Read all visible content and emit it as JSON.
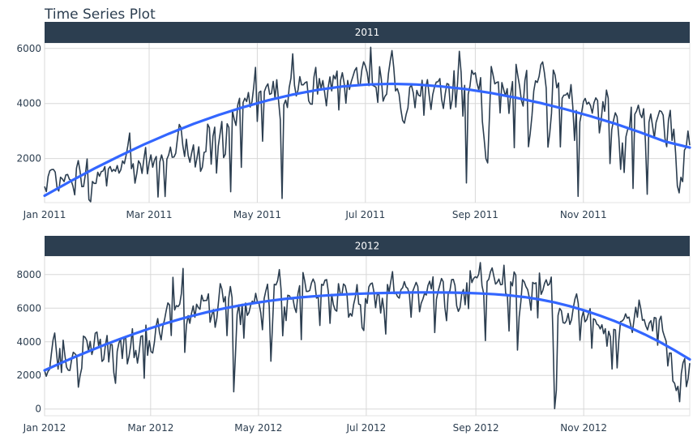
{
  "chart_data": {
    "type": "line",
    "title": "Time Series Plot",
    "colors": {
      "series": "#2c3e50",
      "trend": "#3366ff",
      "strip": "#2c3e50",
      "grid": "#d8d8d8"
    },
    "panels": [
      {
        "label": "2011",
        "x_ticks": [
          {
            "date": "2011-01-01",
            "label": "Jan 2011"
          },
          {
            "date": "2011-03-01",
            "label": "Mar 2011"
          },
          {
            "date": "2011-05-01",
            "label": "May 2011"
          },
          {
            "date": "2011-07-01",
            "label": "Jul 2011"
          },
          {
            "date": "2011-09-01",
            "label": "Sep 2011"
          },
          {
            "date": "2011-11-01",
            "label": "Nov 2011"
          }
        ],
        "y_ticks": [
          2000,
          4000,
          6000
        ],
        "xlim": [
          "2011-01-01",
          "2011-12-31"
        ],
        "ylim": [
          400,
          6200
        ],
        "series_values": [
          985,
          801,
          1349,
          1562,
          1600,
          1606,
          1510,
          959,
          822,
          1321,
          1263,
          1162,
          1406,
          1421,
          1248,
          1204,
          1000,
          683,
          1650,
          1927,
          1543,
          981,
          986,
          1416,
          1985,
          506,
          431,
          1167,
          1098,
          1096,
          1501,
          1360,
          1526,
          1550,
          1708,
          1005,
          1623,
          1712,
          1530,
          1605,
          1538,
          1746,
          1472,
          1589,
          1913,
          1815,
          2115,
          2475,
          2927,
          1635,
          1812,
          1107,
          1450,
          1917,
          1807,
          1461,
          1969,
          2402,
          1446,
          1851,
          2134,
          1685,
          1944,
          2077,
          605,
          1872,
          2133,
          1891,
          623,
          1977,
          2132,
          2417,
          2046,
          2056,
          2192,
          2744,
          3239,
          3117,
          2471,
          2077,
          2703,
          2121,
          1865,
          2210,
          2496,
          1693,
          2028,
          2425,
          1536,
          1685,
          2227,
          2252,
          3249,
          3115,
          1795,
          2808,
          3141,
          1471,
          2455,
          2895,
          3348,
          2034,
          2162,
          3267,
          3126,
          795,
          3744,
          3429,
          3204,
          3944,
          4189,
          1683,
          4036,
          4191,
          4073,
          4400,
          3872,
          4058,
          4595,
          5312,
          3351,
          4401,
          4451,
          2633,
          4433,
          4608,
          4714,
          4333,
          4362,
          4803,
          4182,
          4864,
          4105,
          3409,
          553,
          3958,
          4123,
          3855,
          4575,
          4917,
          5805,
          4660,
          4274,
          4492,
          4978,
          4677,
          4679,
          4758,
          4788,
          4098,
          3982,
          3974,
          4968,
          5312,
          4342,
          4906,
          4548,
          4833,
          4401,
          3915,
          4586,
          4966,
          4460,
          5020,
          4891,
          5180,
          3767,
          4844,
          5119,
          4744,
          4010,
          4835,
          4507,
          4790,
          4991,
          5202,
          5305,
          4708,
          4648,
          5225,
          5515,
          5362,
          5119,
          4649,
          6043,
          4665,
          4629,
          4592,
          4040,
          5336,
          4881,
          4086,
          4258,
          4342,
          5084,
          5538,
          5923,
          5302,
          4458,
          4541,
          4332,
          3784,
          3387,
          3285,
          3606,
          3840,
          4590,
          4656,
          4390,
          3846,
          4475,
          4302,
          4266,
          4845,
          3574,
          4576,
          4866,
          4294,
          3785,
          4326,
          4602,
          4780,
          4792,
          4905,
          4150,
          3820,
          4338,
          4725,
          4694,
          3805,
          4153,
          5191,
          3873,
          4758,
          5895,
          5130,
          3542,
          4661,
          1115,
          4334,
          4634,
          5204,
          5058,
          5115,
          4727,
          4484,
          4940,
          3351,
          2710,
          1996,
          1842,
          3544,
          5345,
          5046,
          4713,
          4763,
          4785,
          3659,
          4760,
          4511,
          4274,
          4539,
          3641,
          4352,
          4795,
          2395,
          5423,
          5010,
          4630,
          4120,
          3907,
          4839,
          5202,
          2429,
          2918,
          3570,
          4456,
          4826,
          4765,
          4985,
          5409,
          5511,
          5117,
          4563,
          2416,
          2913,
          3644,
          5217,
          5041,
          4570,
          4748,
          2424,
          4195,
          4304,
          4308,
          4381,
          4187,
          4687,
          3894,
          2659,
          3747,
          627,
          3331,
          3669,
          4068,
          4186,
          3974,
          4046,
          3926,
          3649,
          4035,
          4205,
          4109,
          2933,
          3368,
          4067,
          3717,
          4486,
          4195,
          1817,
          3053,
          3392,
          3663,
          3520,
          2765,
          1607,
          2566,
          1495,
          2792,
          3068,
          3071,
          3867,
          914,
          3613,
          3727,
          3940,
          3614,
          3485,
          3811,
          2594,
          705,
          3322,
          3620,
          3190,
          2743,
          3310,
          3523,
          3740,
          3709,
          3577,
          2739,
          2431,
          3403,
          3750,
          2660,
          3068,
          2209,
          1011,
          754,
          1317,
          1162,
          2302,
          2423,
          2999,
          2485
        ],
        "trend_values": [
          650,
          1155,
          1635,
          2085,
          2510,
          2900,
          3260,
          3580,
          3865,
          4115,
          4325,
          4495,
          4620,
          4690,
          4715,
          4690,
          4620,
          4520,
          4380,
          4210,
          4015,
          3790,
          3540,
          3265,
          2955,
          2620,
          2400
        ]
      },
      {
        "label": "2012",
        "x_ticks": [
          {
            "date": "2012-01-01",
            "label": "Jan 2012"
          },
          {
            "date": "2012-03-01",
            "label": "Mar 2012"
          },
          {
            "date": "2012-05-01",
            "label": "May 2012"
          },
          {
            "date": "2012-07-01",
            "label": "Jul 2012"
          },
          {
            "date": "2012-09-01",
            "label": "Sep 2012"
          },
          {
            "date": "2012-11-01",
            "label": "Nov 2012"
          }
        ],
        "y_ticks": [
          0,
          2000,
          4000,
          6000,
          8000
        ],
        "xlim": [
          "2012-01-01",
          "2012-12-31"
        ],
        "ylim": [
          -400,
          9100
        ],
        "series_values": [
          2294,
          1951,
          2236,
          2368,
          3272,
          4098,
          4521,
          3425,
          2376,
          3598,
          2177,
          4097,
          3214,
          2493,
          2311,
          2298,
          2935,
          3376,
          3292,
          3163,
          1301,
          1977,
          2432,
          4339,
          4270,
          4075,
          3456,
          4023,
          3243,
          3624,
          4509,
          4579,
          3761,
          4151,
          2832,
          2947,
          3784,
          4375,
          2802,
          3830,
          3831,
          2169,
          1529,
          3422,
          3922,
          4169,
          3005,
          4154,
          4318,
          2689,
          3129,
          3777,
          4773,
          3062,
          3487,
          2732,
          3389,
          4322,
          4363,
          1834,
          4990,
          3194,
          4066,
          3423,
          3333,
          3956,
          4916,
          5382,
          4569,
          4118,
          4911,
          5298,
          5847,
          6312,
          6192,
          4378,
          7836,
          5892,
          6153,
          6093,
          6230,
          6871,
          8362,
          3372,
          4996,
          5558,
          5102,
          5698,
          6133,
          5459,
          6235,
          6041,
          5936,
          6772,
          6436,
          6457,
          6460,
          6857,
          5169,
          5585,
          5918,
          4862,
          5409,
          6398,
          7460,
          7132,
          6370,
          6691,
          4367,
          6565,
          7290,
          6624,
          1027,
          3214,
          5633,
          6196,
          5026,
          6233,
          4220,
          6304,
          5572,
          5740,
          6169,
          6421,
          6296,
          6883,
          6359,
          6273,
          5728,
          4717,
          6572,
          7030,
          7429,
          6118,
          2843,
          5115,
          7424,
          7384,
          7639,
          8294,
          7129,
          4359,
          6073,
          5260,
          6770,
          6734,
          6536,
          6591,
          6043,
          5743,
          6855,
          7338,
          4127,
          8120,
          7641,
          6998,
          7001,
          7055,
          7494,
          7736,
          7498,
          6598,
          6664,
          4972,
          7421,
          7363,
          7665,
          7702,
          6978,
          5099,
          6825,
          6211,
          5905,
          5823,
          7458,
          6891,
          6779,
          7442,
          7335,
          6879,
          5463,
          5687,
          5531,
          6227,
          6660,
          7403,
          6241,
          6207,
          4840,
          4672,
          6569,
          6290,
          7264,
          7446,
          7499,
          6969,
          6031,
          6830,
          6786,
          5713,
          6591,
          5870,
          4459,
          7410,
          6966,
          7592,
          8173,
          6861,
          6904,
          6685,
          6597,
          7105,
          7216,
          7580,
          7261,
          7175,
          6824,
          5464,
          7013,
          7273,
          7534,
          7286,
          5786,
          6299,
          6544,
          6883,
          6784,
          7347,
          7605,
          7148,
          7865,
          4549,
          6530,
          7006,
          7375,
          7765,
          7582,
          6053,
          5255,
          6917,
          7040,
          7697,
          7713,
          7350,
          6140,
          5810,
          6034,
          6864,
          7112,
          6203,
          7504,
          5976,
          8227,
          7525,
          7767,
          7870,
          7804,
          8009,
          8714,
          7333,
          6869,
          4073,
          7591,
          7720,
          8167,
          8395,
          7907,
          7436,
          7538,
          7733,
          7393,
          7415,
          8555,
          6889,
          6778,
          4639,
          7572,
          7328,
          8156,
          7965,
          3510,
          5478,
          6392,
          7691,
          7570,
          7282,
          7109,
          6639,
          5875,
          7534,
          7461,
          7509,
          5424,
          8090,
          6824,
          7058,
          7466,
          7693,
          7359,
          7444,
          7852,
          4459,
          22,
          1096,
          5566,
          5986,
          5847,
          5138,
          5107,
          5259,
          5686,
          5035,
          5315,
          5992,
          6536,
          6852,
          6269,
          4094,
          5406,
          5806,
          5191,
          5312,
          5668,
          5972,
          3614,
          5375,
          5311,
          5048,
          4981,
          4766,
          5013,
          4485,
          4780,
          3740,
          4627,
          4304,
          2382,
          4742,
          4707,
          2448,
          4093,
          5200,
          5234,
          5356,
          5663,
          5409,
          5470,
          5016,
          4555,
          5305,
          6056,
          5464,
          6479,
          5972,
          5283,
          5322,
          4941,
          4710,
          5105,
          5260,
          4648,
          5446,
          5409,
          3799,
          5287,
          5521,
          4652,
          4323,
          4037,
          2565,
          3327,
          3331,
          1663,
          1536,
          1096,
          1349,
          437,
          2114,
          2744,
          2999,
          1330,
          1796,
          2729
        ],
        "trend_values": [
          2300,
          2700,
          3090,
          3460,
          3820,
          4160,
          4480,
          4790,
          5080,
          5340,
          5580,
          5800,
          5990,
          6160,
          6310,
          6440,
          6550,
          6640,
          6710,
          6770,
          6820,
          6860,
          6890,
          6910,
          6930,
          6940,
          6940,
          6930,
          6910,
          6880,
          6830,
          6760,
          6660,
          6520,
          6340,
          6120,
          5860,
          5560,
          5230,
          4850,
          4440,
          3990,
          3490,
          2950
        ]
      }
    ]
  }
}
